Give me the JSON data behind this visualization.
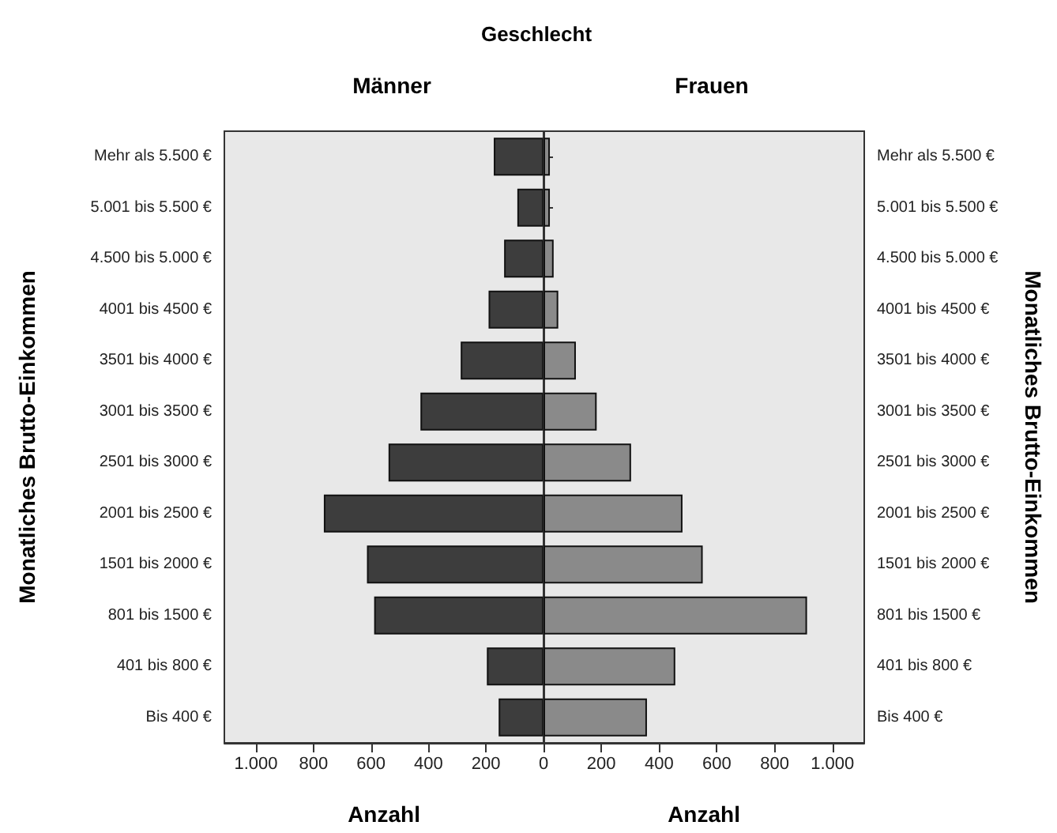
{
  "chart_data": [
    {
      "type": "bar",
      "orientation": "horizontal",
      "title": "Geschlecht",
      "subtitle": "Männer",
      "xlabel": "Anzahl",
      "ylabel": "Monatliches Brutto-Einkommen",
      "categories": [
        "Mehr als 5.500 €",
        "5.001 bis 5.500 €",
        "4.500 bis 5.000 €",
        "4001 bis 4500 €",
        "3501 bis 4000 €",
        "3001 bis 3500 €",
        "2501 bis 3000 €",
        "2001 bis 2500 €",
        "1501 bis 2000 €",
        "801 bis 1500 €",
        "401 bis 800 €",
        "Bis 400 €"
      ],
      "values": [
        173,
        91,
        137,
        191,
        288,
        428,
        539,
        764,
        614,
        589,
        197,
        156
      ],
      "color": "#3d3d3d",
      "xlim": [
        1110,
        0
      ],
      "xticks": [
        {
          "value": 1000,
          "label": "1.000"
        },
        800,
        600,
        400,
        200
      ]
    },
    {
      "type": "bar",
      "orientation": "horizontal",
      "subtitle": "Frauen",
      "xlabel": "Anzahl",
      "ylabel": "Monatliches Brutto-Einkommen",
      "categories": [
        "Mehr als 5.500 €",
        "5.001 bis 5.500 €",
        "4.500 bis 5.000 €",
        "4001 bis 4500 €",
        "3501 bis 4000 €",
        "3001 bis 3500 €",
        "2501 bis 3000 €",
        "2001 bis 2500 €",
        "1501 bis 2000 €",
        "801 bis 1500 €",
        "401 bis 800 €",
        "Bis 400 €"
      ],
      "values": [
        22,
        22,
        35,
        51,
        112,
        184,
        303,
        481,
        551,
        912,
        456,
        358
      ],
      "color": "#8a8a8a",
      "xlim": [
        0,
        1110
      ],
      "xticks": [
        0,
        200,
        400,
        600,
        800,
        {
          "value": 1000,
          "label": "1.000"
        }
      ]
    }
  ]
}
